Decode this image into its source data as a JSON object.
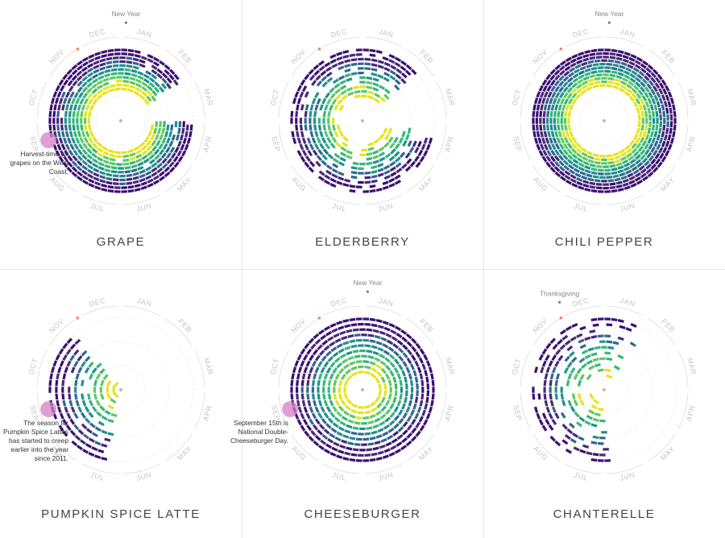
{
  "months": [
    "DEC",
    "JAN",
    "FEB",
    "MAR",
    "APR",
    "MAY",
    "JUN",
    "JUL",
    "AUG",
    "SEP",
    "OCT",
    "NOV"
  ],
  "colors": {
    "dark": "#3b0f70",
    "mid": "#21908c",
    "light": "#5ec962",
    "bright": "#e6e419",
    "highlight": "#d47fc4",
    "dec_marker": "#f08a5d"
  },
  "chart_data": [
    {
      "type": "radial-calendar",
      "title": "GRAPE",
      "peak_month": "SEP",
      "spread": 0.9,
      "inner": 0.45,
      "fill": 0.95,
      "event": {
        "label": "New Year",
        "month_index": 1
      },
      "annotation": {
        "month": "SEP",
        "lines": [
          "Harvest-time for",
          "grapes on the West",
          "Coast."
        ]
      }
    },
    {
      "type": "radial-calendar",
      "title": "ELDERBERRY",
      "peak_month": "SEP",
      "spread": 0.85,
      "inner": 0.35,
      "fill": 0.8,
      "event": null,
      "annotation": null
    },
    {
      "type": "radial-calendar",
      "title": "CHILI PEPPER",
      "peak_month": "OCT",
      "spread": 1.0,
      "inner": 0.5,
      "fill": 1.0,
      "event": {
        "label": "New Year",
        "month_index": 1
      },
      "annotation": null
    },
    {
      "type": "radial-calendar",
      "title": "PUMPKIN SPICE LATTE",
      "peak_month": "SEP",
      "spread": 0.35,
      "inner": 0.1,
      "fill": 0.9,
      "event": null,
      "annotation": {
        "month": "SEP",
        "lines": [
          "The season for",
          "Pumpkin Spice Lattes",
          "has started to creep",
          "earlier into the year",
          "since 2011."
        ]
      }
    },
    {
      "type": "radial-calendar",
      "title": "CHEESEBURGER",
      "peak_month": "SEP",
      "spread": 1.0,
      "inner": 0.25,
      "fill": 1.0,
      "event": {
        "label": "New Year",
        "month_index": 1
      },
      "annotation": {
        "month": "SEP",
        "lines": [
          "September 15th is",
          "National Double-",
          "Cheeseburger Day."
        ]
      }
    },
    {
      "type": "radial-calendar",
      "title": "CHANTERELLE",
      "peak_month": "OCT",
      "spread": 0.6,
      "inner": 0.2,
      "fill": 0.6,
      "event": {
        "label": "Thanksgiving",
        "month_index": 0
      },
      "annotation": null
    }
  ]
}
